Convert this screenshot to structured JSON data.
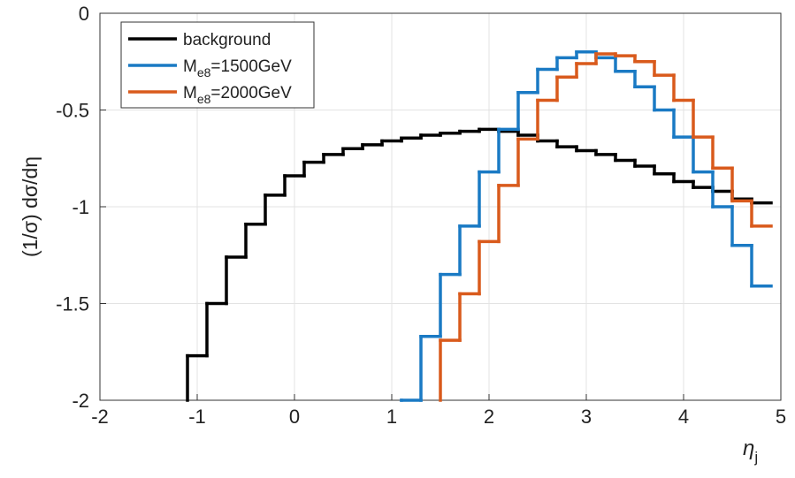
{
  "chart_data": {
    "type": "step_histogram",
    "x_label": "ηj",
    "y_label": "(1/σ) dσ/dη",
    "bins": [
      -1.1,
      -0.9,
      -0.7,
      -0.5,
      -0.3,
      -0.1,
      0.1,
      0.3,
      0.5,
      0.7,
      0.9,
      1.1,
      1.3,
      1.5,
      1.7,
      1.9,
      2.1,
      2.3,
      2.5,
      2.7,
      2.9,
      3.1,
      3.3,
      3.5,
      3.7,
      3.9,
      4.1,
      4.3,
      4.5,
      4.7,
      4.9
    ],
    "series": [
      {
        "name": "background",
        "color": "#000000",
        "values": [
          -1.77,
          -1.5,
          -1.26,
          -1.09,
          -0.94,
          -0.84,
          -0.77,
          -0.73,
          -0.7,
          -0.68,
          -0.66,
          -0.645,
          -0.63,
          -0.62,
          -0.61,
          -0.6,
          -0.61,
          -0.63,
          -0.66,
          -0.69,
          -0.71,
          -0.73,
          -0.76,
          -0.79,
          -0.83,
          -0.87,
          -0.9,
          -0.92,
          -0.96,
          -0.98
        ]
      },
      {
        "name": "Me8=1500GeV",
        "color": "#1a7ac4",
        "values": [
          null,
          null,
          null,
          null,
          null,
          null,
          null,
          null,
          null,
          null,
          null,
          -2.0,
          -1.67,
          -1.35,
          -1.1,
          -0.82,
          -0.6,
          -0.41,
          -0.29,
          -0.23,
          -0.2,
          -0.23,
          -0.3,
          -0.38,
          -0.5,
          -0.64,
          -0.82,
          -1.0,
          -1.2,
          -1.41
        ]
      },
      {
        "name": "Me8=2000GeV",
        "color": "#d95a1c",
        "values": [
          null,
          null,
          null,
          null,
          null,
          null,
          null,
          null,
          null,
          null,
          null,
          null,
          null,
          -1.69,
          -1.45,
          -1.18,
          -0.89,
          -0.65,
          -0.45,
          -0.33,
          -0.26,
          -0.21,
          -0.22,
          -0.25,
          -0.32,
          -0.45,
          -0.64,
          -0.8,
          -0.97,
          -1.1
        ]
      }
    ],
    "xlim": [
      -2,
      5
    ],
    "ylim": [
      -2,
      0
    ],
    "xticks": [
      -2,
      -1,
      0,
      1,
      2,
      3,
      4,
      5
    ],
    "yticks": [
      -2,
      -1.5,
      -1,
      -0.5,
      0
    ],
    "grid": true
  }
}
